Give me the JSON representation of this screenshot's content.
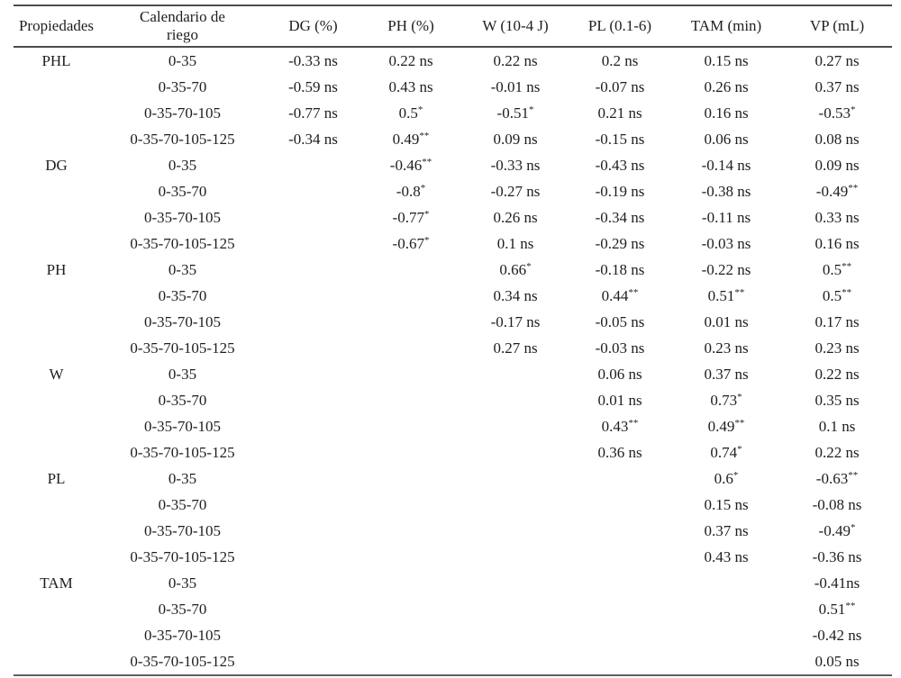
{
  "accent_colors": {
    "rule_color": "#4c4c4c",
    "text_color": "#1e1e1e",
    "background": "#ffffff"
  },
  "table": {
    "columns": [
      "Propiedades",
      "Calendario de riego",
      "DG (%)",
      "PH (%)",
      "W (10-4 J)",
      "PL (0.1-6)",
      "TAM (min)",
      "VP (mL)"
    ],
    "rows": [
      {
        "prop": "PHL",
        "cal": "0-35",
        "cells": [
          {
            "t": "-0.33 ns",
            "s": ""
          },
          {
            "t": "0.22 ns",
            "s": ""
          },
          {
            "t": "0.22 ns",
            "s": ""
          },
          {
            "t": "0.2 ns",
            "s": ""
          },
          {
            "t": "0.15 ns",
            "s": ""
          },
          {
            "t": "0.27 ns",
            "s": ""
          }
        ]
      },
      {
        "prop": "",
        "cal": "0-35-70",
        "cells": [
          {
            "t": "-0.59 ns",
            "s": ""
          },
          {
            "t": "0.43 ns",
            "s": ""
          },
          {
            "t": "-0.01 ns",
            "s": ""
          },
          {
            "t": "-0.07 ns",
            "s": ""
          },
          {
            "t": "0.26 ns",
            "s": ""
          },
          {
            "t": "0.37 ns",
            "s": ""
          }
        ]
      },
      {
        "prop": "",
        "cal": "0-35-70-105",
        "cells": [
          {
            "t": "-0.77 ns",
            "s": ""
          },
          {
            "t": "0.5",
            "s": "*"
          },
          {
            "t": "-0.51",
            "s": "*"
          },
          {
            "t": "0.21 ns",
            "s": ""
          },
          {
            "t": "0.16 ns",
            "s": ""
          },
          {
            "t": "-0.53",
            "s": "*"
          }
        ]
      },
      {
        "prop": "",
        "cal": "0-35-70-105-125",
        "cells": [
          {
            "t": "-0.34 ns",
            "s": ""
          },
          {
            "t": "0.49",
            "s": "**"
          },
          {
            "t": "0.09 ns",
            "s": ""
          },
          {
            "t": "-0.15 ns",
            "s": ""
          },
          {
            "t": "0.06 ns",
            "s": ""
          },
          {
            "t": "0.08 ns",
            "s": ""
          }
        ]
      },
      {
        "prop": "DG",
        "cal": "0-35",
        "cells": [
          null,
          {
            "t": "-0.46",
            "s": "**"
          },
          {
            "t": "-0.33 ns",
            "s": ""
          },
          {
            "t": "-0.43 ns",
            "s": ""
          },
          {
            "t": "-0.14 ns",
            "s": ""
          },
          {
            "t": "0.09 ns",
            "s": ""
          }
        ]
      },
      {
        "prop": "",
        "cal": "0-35-70",
        "cells": [
          null,
          {
            "t": "-0.8",
            "s": "*"
          },
          {
            "t": "-0.27 ns",
            "s": ""
          },
          {
            "t": "-0.19 ns",
            "s": ""
          },
          {
            "t": "-0.38 ns",
            "s": ""
          },
          {
            "t": "-0.49",
            "s": "**"
          }
        ]
      },
      {
        "prop": "",
        "cal": "0-35-70-105",
        "cells": [
          null,
          {
            "t": "-0.77",
            "s": "*"
          },
          {
            "t": "0.26 ns",
            "s": ""
          },
          {
            "t": "-0.34 ns",
            "s": ""
          },
          {
            "t": "-0.11 ns",
            "s": ""
          },
          {
            "t": "0.33 ns",
            "s": ""
          }
        ]
      },
      {
        "prop": "",
        "cal": "0-35-70-105-125",
        "cells": [
          null,
          {
            "t": "-0.67",
            "s": "*"
          },
          {
            "t": "0.1 ns",
            "s": ""
          },
          {
            "t": "-0.29 ns",
            "s": ""
          },
          {
            "t": "-0.03 ns",
            "s": ""
          },
          {
            "t": "0.16 ns",
            "s": ""
          }
        ]
      },
      {
        "prop": "PH",
        "cal": "0-35",
        "cells": [
          null,
          null,
          {
            "t": "0.66",
            "s": "*"
          },
          {
            "t": "-0.18 ns",
            "s": ""
          },
          {
            "t": "-0.22 ns",
            "s": ""
          },
          {
            "t": "0.5",
            "s": "**"
          }
        ]
      },
      {
        "prop": "",
        "cal": "0-35-70",
        "cells": [
          null,
          null,
          {
            "t": "0.34 ns",
            "s": ""
          },
          {
            "t": "0.44",
            "s": "**"
          },
          {
            "t": "0.51",
            "s": "**"
          },
          {
            "t": "0.5",
            "s": "**"
          }
        ]
      },
      {
        "prop": "",
        "cal": "0-35-70-105",
        "cells": [
          null,
          null,
          {
            "t": "-0.17 ns",
            "s": ""
          },
          {
            "t": "-0.05 ns",
            "s": ""
          },
          {
            "t": "0.01 ns",
            "s": ""
          },
          {
            "t": "0.17 ns",
            "s": ""
          }
        ]
      },
      {
        "prop": "",
        "cal": "0-35-70-105-125",
        "cells": [
          null,
          null,
          {
            "t": "0.27 ns",
            "s": ""
          },
          {
            "t": "-0.03 ns",
            "s": ""
          },
          {
            "t": "0.23 ns",
            "s": ""
          },
          {
            "t": "0.23 ns",
            "s": ""
          }
        ]
      },
      {
        "prop": "W",
        "cal": "0-35",
        "cells": [
          null,
          null,
          null,
          {
            "t": "0.06 ns",
            "s": ""
          },
          {
            "t": "0.37 ns",
            "s": ""
          },
          {
            "t": "0.22 ns",
            "s": ""
          }
        ]
      },
      {
        "prop": "",
        "cal": "0-35-70",
        "cells": [
          null,
          null,
          null,
          {
            "t": "0.01 ns",
            "s": ""
          },
          {
            "t": "0.73",
            "s": "*"
          },
          {
            "t": "0.35 ns",
            "s": ""
          }
        ]
      },
      {
        "prop": "",
        "cal": "0-35-70-105",
        "cells": [
          null,
          null,
          null,
          {
            "t": "0.43",
            "s": "**"
          },
          {
            "t": "0.49",
            "s": "**"
          },
          {
            "t": "0.1 ns",
            "s": ""
          }
        ]
      },
      {
        "prop": "",
        "cal": "0-35-70-105-125",
        "cells": [
          null,
          null,
          null,
          {
            "t": "0.36 ns",
            "s": ""
          },
          {
            "t": "0.74",
            "s": "*"
          },
          {
            "t": "0.22 ns",
            "s": ""
          }
        ]
      },
      {
        "prop": "PL",
        "cal": "0-35",
        "cells": [
          null,
          null,
          null,
          null,
          {
            "t": "0.6",
            "s": "*"
          },
          {
            "t": "-0.63",
            "s": "**"
          }
        ]
      },
      {
        "prop": "",
        "cal": "0-35-70",
        "cells": [
          null,
          null,
          null,
          null,
          {
            "t": "0.15 ns",
            "s": ""
          },
          {
            "t": "-0.08 ns",
            "s": ""
          }
        ]
      },
      {
        "prop": "",
        "cal": "0-35-70-105",
        "cells": [
          null,
          null,
          null,
          null,
          {
            "t": "0.37 ns",
            "s": ""
          },
          {
            "t": "-0.49",
            "s": "*"
          }
        ]
      },
      {
        "prop": "",
        "cal": "0-35-70-105-125",
        "cells": [
          null,
          null,
          null,
          null,
          {
            "t": "0.43 ns",
            "s": ""
          },
          {
            "t": "-0.36 ns",
            "s": ""
          }
        ]
      },
      {
        "prop": "TAM",
        "cal": "0-35",
        "cells": [
          null,
          null,
          null,
          null,
          null,
          {
            "t": "-0.41ns",
            "s": ""
          }
        ]
      },
      {
        "prop": "",
        "cal": "0-35-70",
        "cells": [
          null,
          null,
          null,
          null,
          null,
          {
            "t": "0.51",
            "s": "**"
          }
        ]
      },
      {
        "prop": "",
        "cal": "0-35-70-105",
        "cells": [
          null,
          null,
          null,
          null,
          null,
          {
            "t": "-0.42 ns",
            "s": ""
          }
        ]
      },
      {
        "prop": "",
        "cal": "0-35-70-105-125",
        "cells": [
          null,
          null,
          null,
          null,
          null,
          {
            "t": "0.05 ns",
            "s": ""
          }
        ]
      }
    ]
  }
}
